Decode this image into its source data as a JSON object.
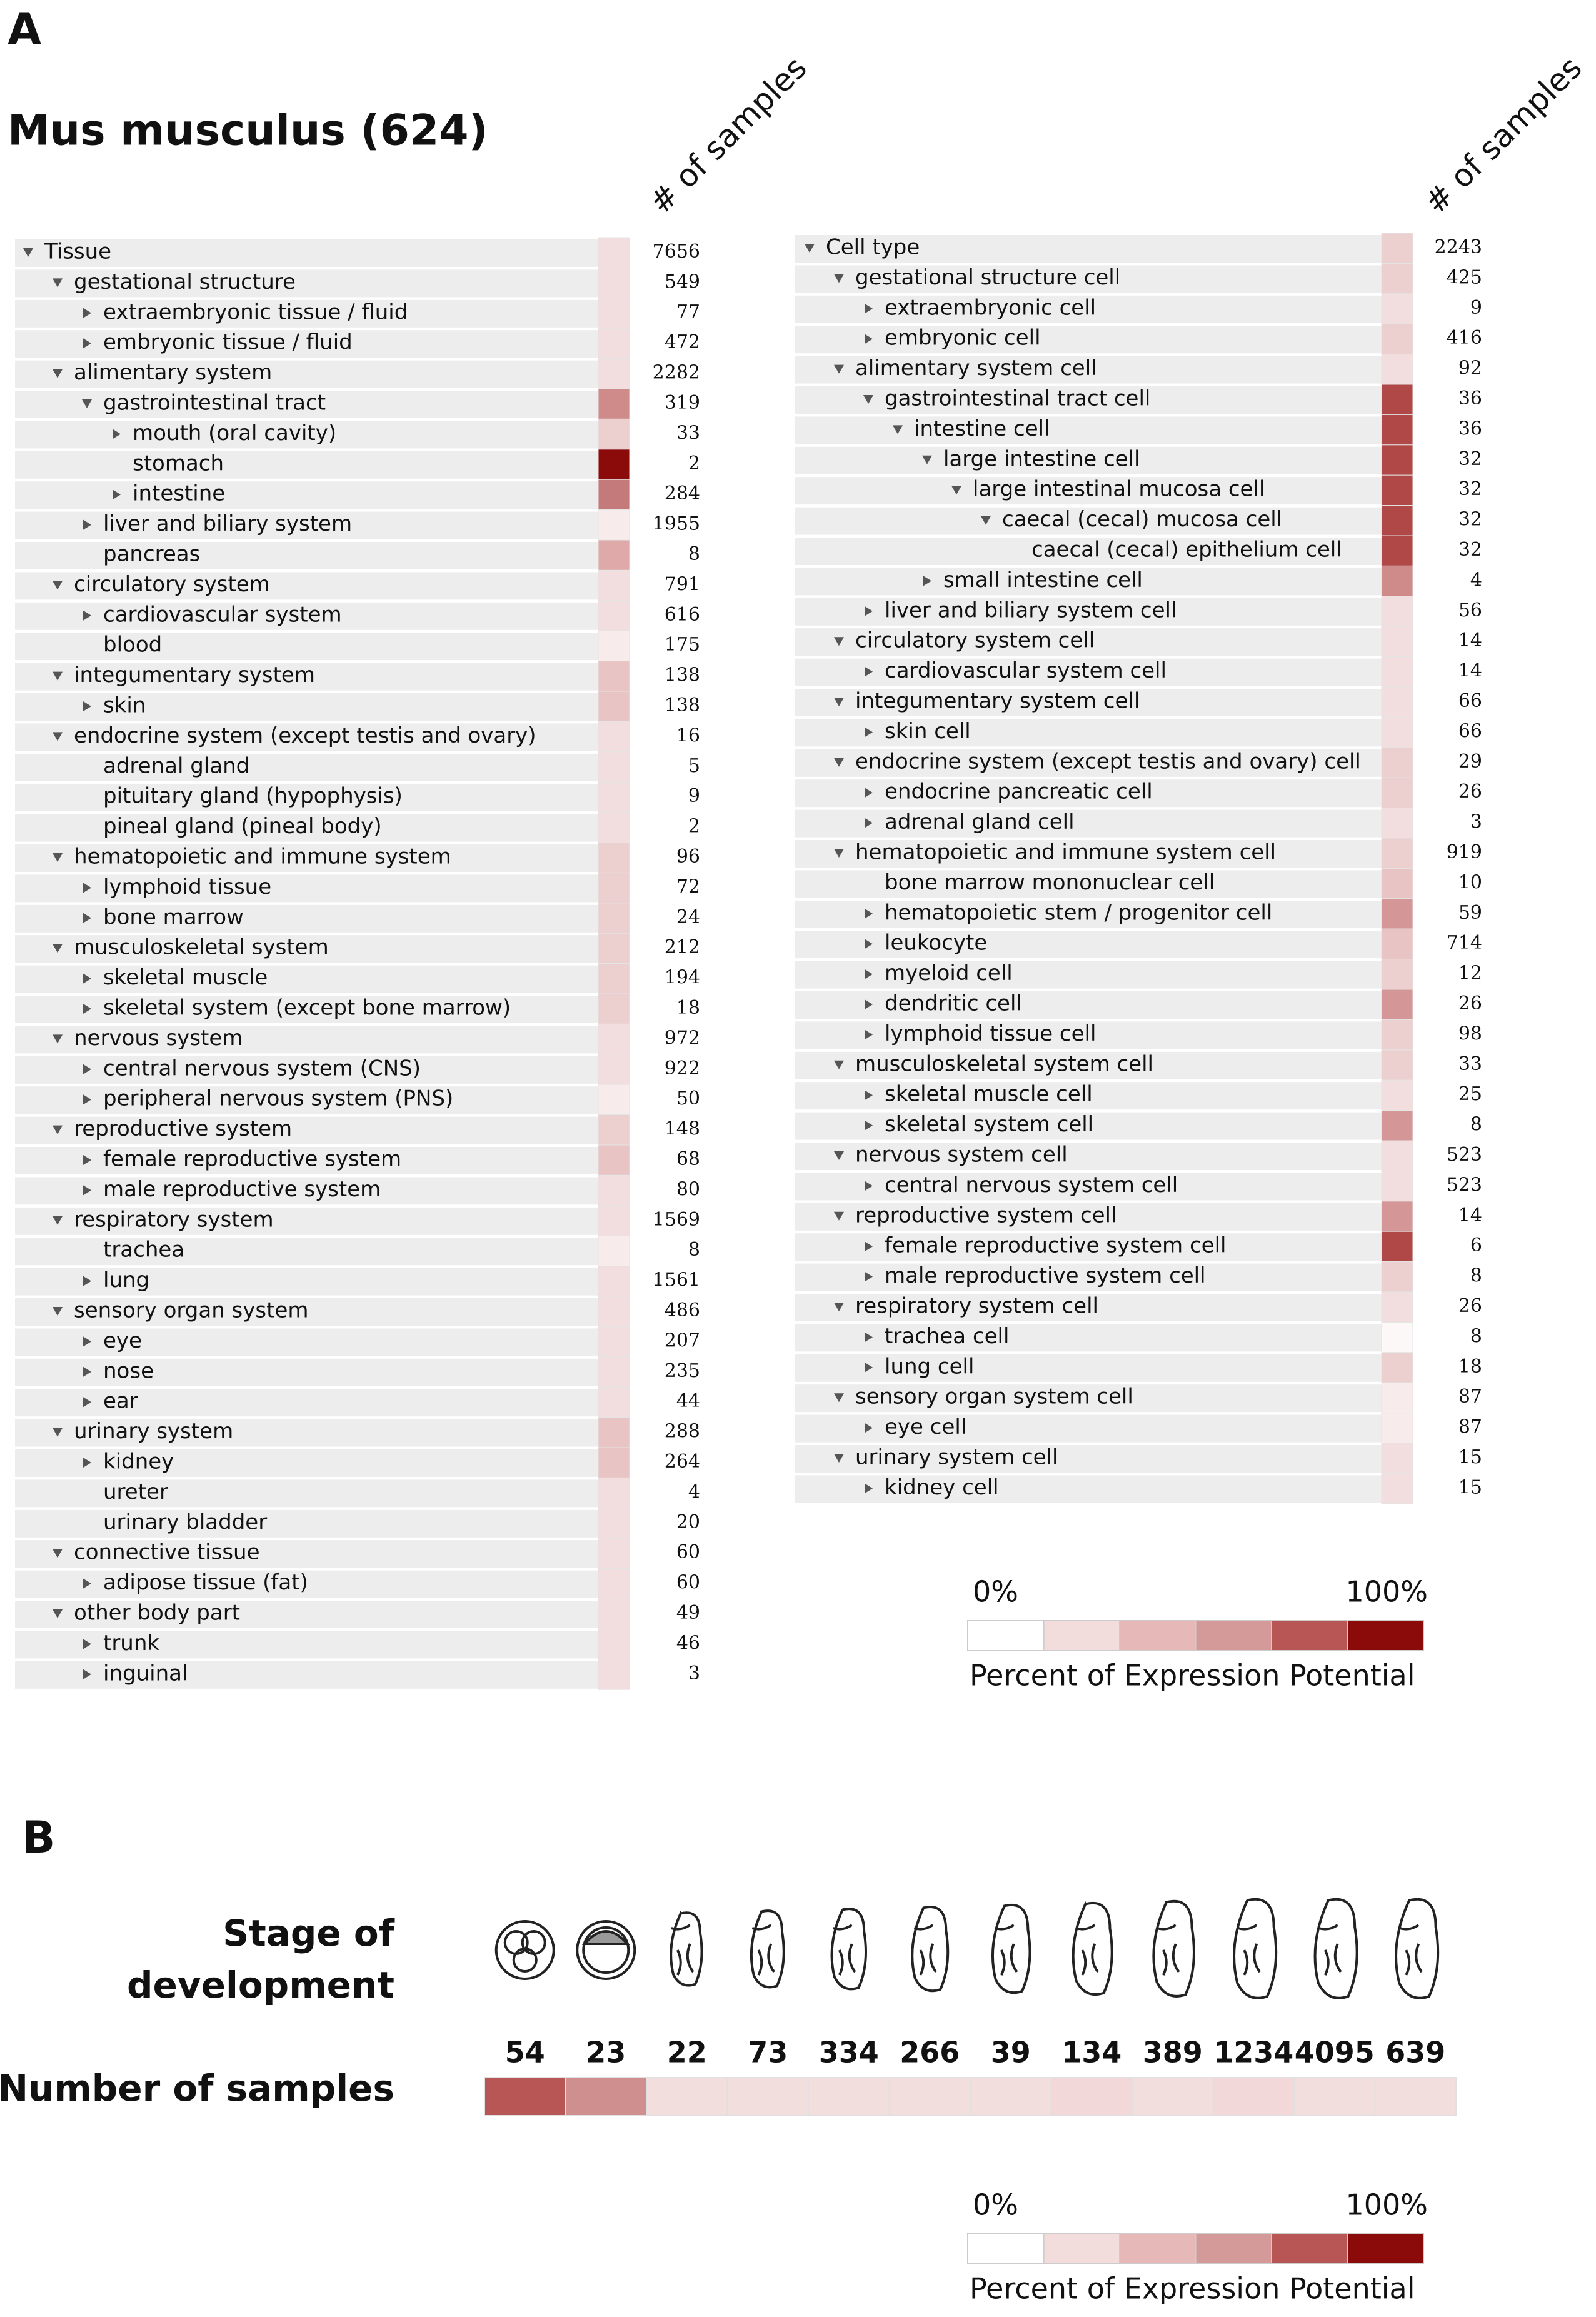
{
  "panel_a": {
    "label": "A",
    "title": "Mus musculus (624)",
    "tissue": {
      "header": "# of samples",
      "rows": [
        {
          "label": "Tissue",
          "depth": 0,
          "toggle": "open",
          "count": 7656,
          "color": "#f2dede"
        },
        {
          "label": "gestational structure",
          "depth": 1,
          "toggle": "open",
          "count": 549,
          "color": "#f2dede"
        },
        {
          "label": "extraembryonic tissue / fluid",
          "depth": 2,
          "toggle": "closed",
          "count": 77,
          "color": "#f2dede"
        },
        {
          "label": "embryonic tissue / fluid",
          "depth": 2,
          "toggle": "closed",
          "count": 472,
          "color": "#f2dede"
        },
        {
          "label": "alimentary system",
          "depth": 1,
          "toggle": "open",
          "count": 2282,
          "color": "#f2dede"
        },
        {
          "label": "gastrointestinal tract",
          "depth": 2,
          "toggle": "open",
          "count": 319,
          "color": "#cf8a8a"
        },
        {
          "label": "mouth (oral cavity)",
          "depth": 3,
          "toggle": "closed",
          "count": 33,
          "color": "#ecd0d0"
        },
        {
          "label": "stomach",
          "depth": 3,
          "count": 2,
          "color": "#8b0a0a"
        },
        {
          "label": "intestine",
          "depth": 3,
          "toggle": "closed",
          "count": 284,
          "color": "#c47a7a"
        },
        {
          "label": "liver and biliary system",
          "depth": 2,
          "toggle": "closed",
          "count": 1955,
          "color": "#f7ebeb"
        },
        {
          "label": "pancreas",
          "depth": 2,
          "count": 8,
          "color": "#dfa9a9"
        },
        {
          "label": "circulatory system",
          "depth": 1,
          "toggle": "open",
          "count": 791,
          "color": "#f2dede"
        },
        {
          "label": "cardiovascular system",
          "depth": 2,
          "toggle": "closed",
          "count": 616,
          "color": "#f2dede"
        },
        {
          "label": "blood",
          "depth": 2,
          "count": 175,
          "color": "#f7ebeb"
        },
        {
          "label": "integumentary system",
          "depth": 1,
          "toggle": "open",
          "count": 138,
          "color": "#e8c4c4"
        },
        {
          "label": "skin",
          "depth": 2,
          "toggle": "closed",
          "count": 138,
          "color": "#e8c4c4"
        },
        {
          "label": "endocrine system (except testis and ovary)",
          "depth": 1,
          "toggle": "open",
          "count": 16,
          "color": "#f2dede"
        },
        {
          "label": "adrenal gland",
          "depth": 2,
          "count": 5,
          "color": "#f2dede"
        },
        {
          "label": "pituitary gland (hypophysis)",
          "depth": 2,
          "count": 9,
          "color": "#f2dede"
        },
        {
          "label": "pineal gland (pineal body)",
          "depth": 2,
          "count": 2,
          "color": "#f2dede"
        },
        {
          "label": "hematopoietic and immune system",
          "depth": 1,
          "toggle": "open",
          "count": 96,
          "color": "#ecd0d0"
        },
        {
          "label": "lymphoid tissue",
          "depth": 2,
          "toggle": "closed",
          "count": 72,
          "color": "#ecd0d0"
        },
        {
          "label": "bone marrow",
          "depth": 2,
          "toggle": "closed",
          "count": 24,
          "color": "#ecd0d0"
        },
        {
          "label": "musculoskeletal system",
          "depth": 1,
          "toggle": "open",
          "count": 212,
          "color": "#ecd0d0"
        },
        {
          "label": "skeletal muscle",
          "depth": 2,
          "toggle": "closed",
          "count": 194,
          "color": "#ecd0d0"
        },
        {
          "label": "skeletal system (except bone marrow)",
          "depth": 2,
          "toggle": "closed",
          "count": 18,
          "color": "#ecd0d0"
        },
        {
          "label": "nervous system",
          "depth": 1,
          "toggle": "open",
          "count": 972,
          "color": "#f2dede"
        },
        {
          "label": "central nervous system (CNS)",
          "depth": 2,
          "toggle": "closed",
          "count": 922,
          "color": "#f2dede"
        },
        {
          "label": "peripheral nervous system (PNS)",
          "depth": 2,
          "toggle": "closed",
          "count": 50,
          "color": "#f7ebeb"
        },
        {
          "label": "reproductive system",
          "depth": 1,
          "toggle": "open",
          "count": 148,
          "color": "#ecd0d0"
        },
        {
          "label": "female reproductive system",
          "depth": 2,
          "toggle": "closed",
          "count": 68,
          "color": "#e8c4c4"
        },
        {
          "label": "male reproductive system",
          "depth": 2,
          "toggle": "closed",
          "count": 80,
          "color": "#f2dede"
        },
        {
          "label": "respiratory system",
          "depth": 1,
          "toggle": "open",
          "count": 1569,
          "color": "#f2dede"
        },
        {
          "label": "trachea",
          "depth": 2,
          "count": 8,
          "color": "#f7ebeb"
        },
        {
          "label": "lung",
          "depth": 2,
          "toggle": "closed",
          "count": 1561,
          "color": "#f2dede"
        },
        {
          "label": "sensory organ system",
          "depth": 1,
          "toggle": "open",
          "count": 486,
          "color": "#f2dede"
        },
        {
          "label": "eye",
          "depth": 2,
          "toggle": "closed",
          "count": 207,
          "color": "#f2dede"
        },
        {
          "label": "nose",
          "depth": 2,
          "toggle": "closed",
          "count": 235,
          "color": "#f2dede"
        },
        {
          "label": "ear",
          "depth": 2,
          "toggle": "closed",
          "count": 44,
          "color": "#f2dede"
        },
        {
          "label": "urinary system",
          "depth": 1,
          "toggle": "open",
          "count": 288,
          "color": "#e8c4c4"
        },
        {
          "label": "kidney",
          "depth": 2,
          "toggle": "closed",
          "count": 264,
          "color": "#e8c4c4"
        },
        {
          "label": "ureter",
          "depth": 2,
          "count": 4,
          "color": "#f2dede"
        },
        {
          "label": "urinary bladder",
          "depth": 2,
          "count": 20,
          "color": "#f2dede"
        },
        {
          "label": "connective tissue",
          "depth": 1,
          "toggle": "open",
          "count": 60,
          "color": "#f2dede"
        },
        {
          "label": "adipose tissue (fat)",
          "depth": 2,
          "toggle": "closed",
          "count": 60,
          "color": "#f2dede"
        },
        {
          "label": "other body part",
          "depth": 1,
          "toggle": "open",
          "count": 49,
          "color": "#f2dede"
        },
        {
          "label": "trunk",
          "depth": 2,
          "toggle": "closed",
          "count": 46,
          "color": "#f2dede"
        },
        {
          "label": "inguinal",
          "depth": 2,
          "toggle": "closed",
          "count": 3,
          "color": "#f2dede"
        }
      ]
    },
    "cell_type": {
      "header": "# of samples",
      "rows": [
        {
          "label": "Cell type",
          "depth": 0,
          "toggle": "open",
          "count": 2243,
          "color": "#ecd0d0"
        },
        {
          "label": "gestational structure cell",
          "depth": 1,
          "toggle": "open",
          "count": 425,
          "color": "#ecd0d0"
        },
        {
          "label": "extraembryonic cell",
          "depth": 2,
          "toggle": "closed",
          "count": 9,
          "color": "#f2dede"
        },
        {
          "label": "embryonic cell",
          "depth": 2,
          "toggle": "closed",
          "count": 416,
          "color": "#ecd0d0"
        },
        {
          "label": "alimentary system cell",
          "depth": 1,
          "toggle": "open",
          "count": 92,
          "color": "#f2dede"
        },
        {
          "label": "gastrointestinal tract cell",
          "depth": 2,
          "toggle": "open",
          "count": 36,
          "color": "#b04848"
        },
        {
          "label": "intestine cell",
          "depth": 3,
          "toggle": "open",
          "count": 36,
          "color": "#b04848"
        },
        {
          "label": "large intestine cell",
          "depth": 4,
          "toggle": "open",
          "count": 32,
          "color": "#b04848"
        },
        {
          "label": "large intestinal mucosa cell",
          "depth": 5,
          "toggle": "open",
          "count": 32,
          "color": "#b04848"
        },
        {
          "label": "caecal (cecal) mucosa cell",
          "depth": 6,
          "toggle": "open",
          "count": 32,
          "color": "#b04848"
        },
        {
          "label": "caecal (cecal) epithelium cell",
          "depth": 7,
          "count": 32,
          "color": "#b04848"
        },
        {
          "label": "small intestine cell",
          "depth": 4,
          "toggle": "closed",
          "count": 4,
          "color": "#cf8a8a"
        },
        {
          "label": "liver and biliary system cell",
          "depth": 2,
          "toggle": "closed",
          "count": 56,
          "color": "#f2dede"
        },
        {
          "label": "circulatory system cell",
          "depth": 1,
          "toggle": "open",
          "count": 14,
          "color": "#f2dede"
        },
        {
          "label": "cardiovascular system cell",
          "depth": 2,
          "toggle": "closed",
          "count": 14,
          "color": "#f2dede"
        },
        {
          "label": "integumentary system cell",
          "depth": 1,
          "toggle": "open",
          "count": 66,
          "color": "#f2dede"
        },
        {
          "label": "skin cell",
          "depth": 2,
          "toggle": "closed",
          "count": 66,
          "color": "#f2dede"
        },
        {
          "label": "endocrine system (except testis and ovary) cell",
          "depth": 1,
          "toggle": "open",
          "count": 29,
          "color": "#ecd0d0"
        },
        {
          "label": "endocrine pancreatic cell",
          "depth": 2,
          "toggle": "closed",
          "count": 26,
          "color": "#ecd0d0"
        },
        {
          "label": "adrenal gland cell",
          "depth": 2,
          "toggle": "closed",
          "count": 3,
          "color": "#f2dede"
        },
        {
          "label": "hematopoietic and immune system cell",
          "depth": 1,
          "toggle": "open",
          "count": 919,
          "color": "#ecd0d0"
        },
        {
          "label": "bone marrow mononuclear cell",
          "depth": 2,
          "count": 10,
          "color": "#e8c4c4"
        },
        {
          "label": "hematopoietic stem / progenitor cell",
          "depth": 2,
          "toggle": "closed",
          "count": 59,
          "color": "#d49696"
        },
        {
          "label": "leukocyte",
          "depth": 2,
          "toggle": "closed",
          "count": 714,
          "color": "#e8c4c4"
        },
        {
          "label": "myeloid cell",
          "depth": 2,
          "toggle": "closed",
          "count": 12,
          "color": "#ecd0d0"
        },
        {
          "label": "dendritic cell",
          "depth": 2,
          "toggle": "closed",
          "count": 26,
          "color": "#d49696"
        },
        {
          "label": "lymphoid tissue cell",
          "depth": 2,
          "toggle": "closed",
          "count": 98,
          "color": "#ecd0d0"
        },
        {
          "label": "musculoskeletal system cell",
          "depth": 1,
          "toggle": "open",
          "count": 33,
          "color": "#ecd0d0"
        },
        {
          "label": "skeletal muscle cell",
          "depth": 2,
          "toggle": "closed",
          "count": 25,
          "color": "#f2dede"
        },
        {
          "label": "skeletal system cell",
          "depth": 2,
          "toggle": "closed",
          "count": 8,
          "color": "#d49696"
        },
        {
          "label": "nervous system cell",
          "depth": 1,
          "toggle": "open",
          "count": 523,
          "color": "#f2dede"
        },
        {
          "label": "central nervous system cell",
          "depth": 2,
          "toggle": "closed",
          "count": 523,
          "color": "#f2dede"
        },
        {
          "label": "reproductive system cell",
          "depth": 1,
          "toggle": "open",
          "count": 14,
          "color": "#d49696"
        },
        {
          "label": "female reproductive system cell",
          "depth": 2,
          "toggle": "closed",
          "count": 6,
          "color": "#b04848"
        },
        {
          "label": "male reproductive system cell",
          "depth": 2,
          "toggle": "closed",
          "count": 8,
          "color": "#ecd0d0"
        },
        {
          "label": "respiratory system cell",
          "depth": 1,
          "toggle": "open",
          "count": 26,
          "color": "#f2dede"
        },
        {
          "label": "trachea cell",
          "depth": 2,
          "toggle": "closed",
          "count": 8,
          "color": "#fcf8f8"
        },
        {
          "label": "lung cell",
          "depth": 2,
          "toggle": "closed",
          "count": 18,
          "color": "#ecd0d0"
        },
        {
          "label": "sensory organ system cell",
          "depth": 1,
          "toggle": "open",
          "count": 87,
          "color": "#f7ebeb"
        },
        {
          "label": "eye cell",
          "depth": 2,
          "toggle": "closed",
          "count": 87,
          "color": "#f7ebeb"
        },
        {
          "label": "urinary system cell",
          "depth": 1,
          "toggle": "open",
          "count": 15,
          "color": "#f2dede"
        },
        {
          "label": "kidney cell",
          "depth": 2,
          "toggle": "closed",
          "count": 15,
          "color": "#f2dede"
        }
      ]
    },
    "legend": {
      "min_label": "0%",
      "max_label": "100%",
      "caption": "Percent of Expression Potential",
      "colors": [
        "#ffffff",
        "#f2dcdc",
        "#e6b8b8",
        "#d49a9a",
        "#b85555",
        "#8b0a0a"
      ]
    }
  },
  "panel_b": {
    "label": "B",
    "stage_label": [
      "Stage of",
      "development"
    ],
    "samples_label": "Number of samples",
    "counts": [
      54,
      23,
      22,
      73,
      334,
      266,
      39,
      134,
      389,
      1234,
      4095,
      639
    ],
    "colors": [
      "#b85555",
      "#cf8f8f",
      "#f3dede",
      "#f3dede",
      "#f3dede",
      "#f3dede",
      "#f3dede",
      "#f2d8d8",
      "#f3dede",
      "#f2d8d8",
      "#f3dede",
      "#f3dede"
    ],
    "legend": {
      "min_label": "0%",
      "max_label": "100%",
      "caption": "Percent of Expression Potential",
      "colors": [
        "#ffffff",
        "#f2dcdc",
        "#e6b8b8",
        "#d49a9a",
        "#b85555",
        "#8b0a0a"
      ]
    }
  }
}
